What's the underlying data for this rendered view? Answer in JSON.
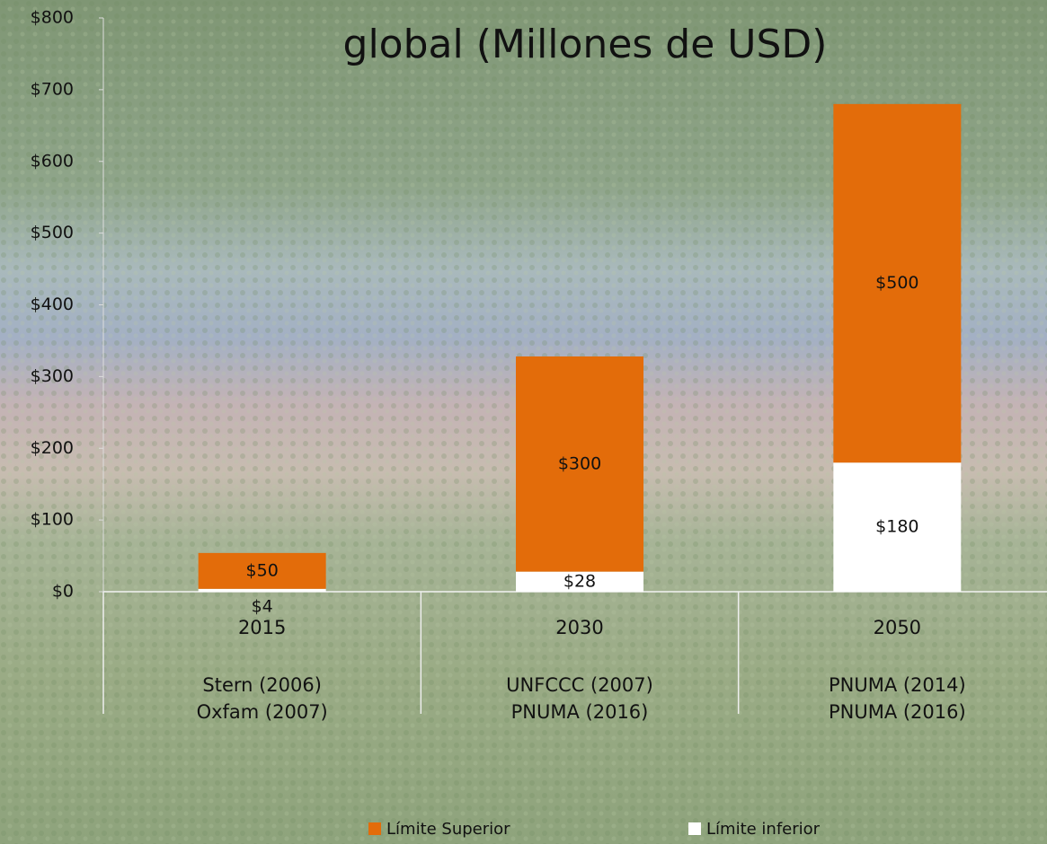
{
  "chart_data": {
    "type": "stacked_bar",
    "title": "global (Millones de USD)",
    "categories": [
      "2015",
      "2030",
      "2050"
    ],
    "category_sources": [
      [
        "Stern (2006)",
        "Oxfam (2007)"
      ],
      [
        "UNFCCC (2007)",
        "PNUMA (2016)"
      ],
      [
        "PNUMA (2014)",
        "PNUMA (2016)"
      ]
    ],
    "series": [
      {
        "name": "Límite inferior",
        "color": "#ffffff",
        "values": [
          4,
          28,
          180
        ],
        "value_labels": [
          "$4",
          "$28",
          "$180"
        ]
      },
      {
        "name": "Límite Superior",
        "color": "#e36c0a",
        "values": [
          50,
          300,
          500
        ],
        "value_labels": [
          "$50",
          "$300",
          "$500"
        ]
      }
    ],
    "ylim": [
      0,
      800
    ],
    "yticks": [
      {
        "value": 0,
        "label": "$0"
      },
      {
        "value": 100,
        "label": "$100"
      },
      {
        "value": 200,
        "label": "$200"
      },
      {
        "value": 300,
        "label": "$300"
      },
      {
        "value": 400,
        "label": "$400"
      },
      {
        "value": 500,
        "label": "$500"
      },
      {
        "value": 600,
        "label": "$600"
      },
      {
        "value": 700,
        "label": "$700"
      },
      {
        "value": 800,
        "label": "$800"
      }
    ],
    "legend_order": [
      1,
      0
    ]
  }
}
